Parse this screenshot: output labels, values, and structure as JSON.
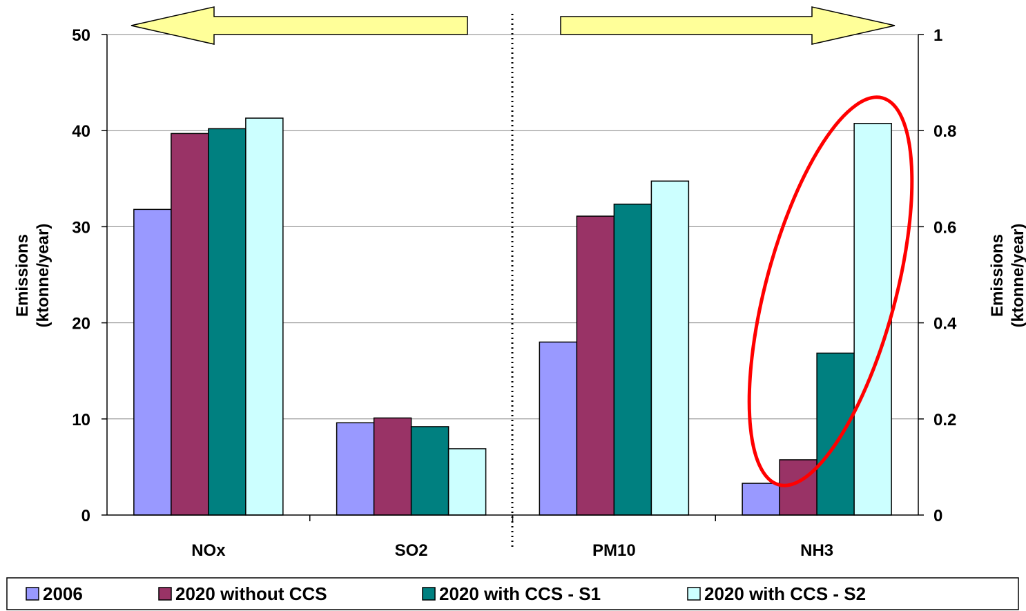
{
  "chart_data": {
    "type": "bar",
    "categories": [
      "NOx",
      "SO2",
      "PM10",
      "NH3"
    ],
    "series": [
      {
        "name": "2006",
        "color": "#9999ff",
        "values": [
          31.8,
          9.6,
          0.36,
          0.066
        ]
      },
      {
        "name": "2020 without CCS",
        "color": "#993366",
        "values": [
          39.7,
          10.1,
          0.622,
          0.115
        ]
      },
      {
        "name": "2020 with CCS - S1",
        "color": "#008080",
        "values": [
          40.2,
          9.2,
          0.647,
          0.337
        ]
      },
      {
        "name": "2020 with CCS - S2",
        "color": "#ccffff",
        "values": [
          41.3,
          6.9,
          0.695,
          0.815
        ]
      }
    ],
    "left_axis": {
      "label_line1": "Emissions",
      "label_line2": "(ktonne/year)",
      "ylim": [
        0,
        50
      ],
      "ticks": [
        "0",
        "10",
        "20",
        "30",
        "40",
        "50"
      ],
      "applies_to": [
        "NOx",
        "SO2"
      ]
    },
    "right_axis": {
      "label_line1": "Emissions",
      "label_line2": "(ktonne/year)",
      "ylim": [
        0,
        1
      ],
      "ticks": [
        "0",
        "0.2",
        "0.4",
        "0.6",
        "0.8",
        "1"
      ],
      "applies_to": [
        "PM10",
        "NH3"
      ]
    },
    "grid": true,
    "legend": "bottom",
    "annotations": [
      "left arrow pointing to left axis",
      "right arrow pointing to right axis",
      "dotted vertical divider between SO2 and PM10",
      "red ellipse highlighting NH3"
    ],
    "colors": {
      "arrow_fill": "#ffff99",
      "ellipse": "#ff0000",
      "grid": "#808080"
    }
  }
}
